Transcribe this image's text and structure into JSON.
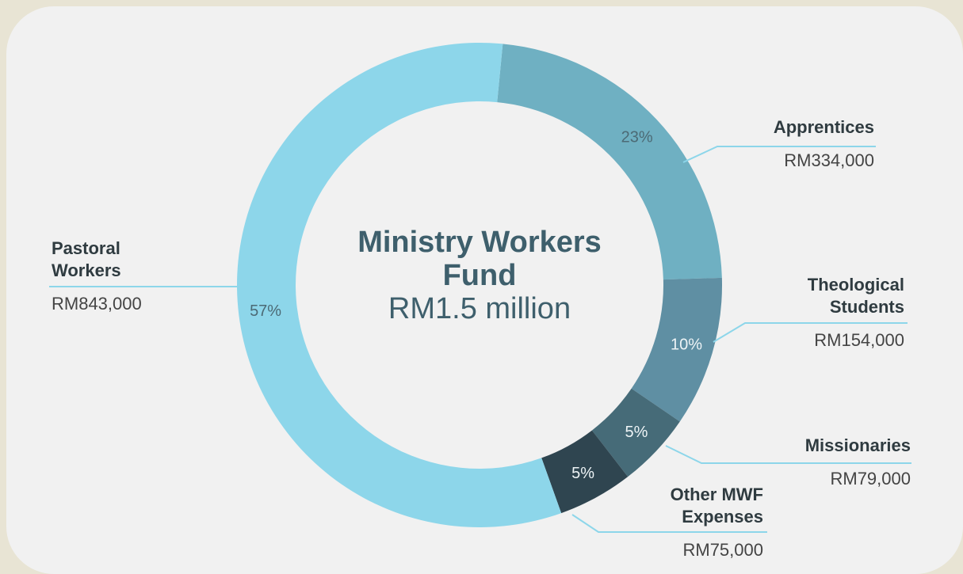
{
  "chart_data": {
    "type": "donut",
    "title": "Ministry Workers Fund",
    "subtitle": "RM1.5 million",
    "categories": [
      "Apprentices",
      "Theological Students",
      "Missionaries",
      "Other MWF Expenses",
      "Pastoral Workers"
    ],
    "values": [
      23,
      10,
      5,
      5,
      57
    ],
    "value_labels": [
      "23%",
      "10%",
      "5%",
      "5%",
      "57%"
    ],
    "amounts": [
      "RM334,000",
      "RM154,000",
      "RM79,000",
      "RM75,000",
      "RM843,000"
    ],
    "colors": [
      "#6fb0c2",
      "#5f8fa3",
      "#466b78",
      "#2f4550",
      "#8dd6ea"
    ]
  }
}
